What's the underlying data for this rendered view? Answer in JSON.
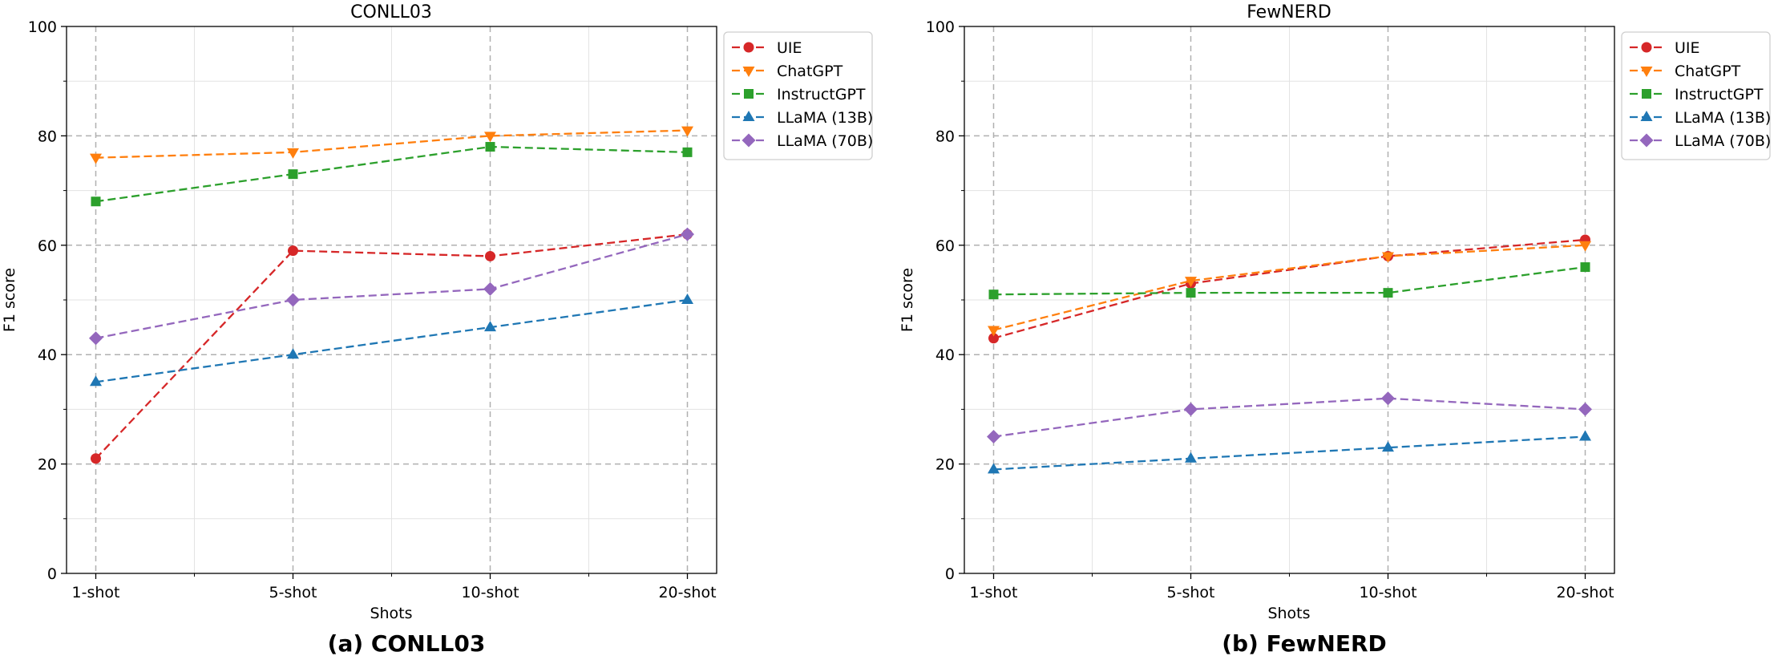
{
  "chart_data": [
    {
      "type": "line",
      "title": "CONLL03",
      "caption": "(a) CONLL03",
      "xlabel": "Shots",
      "ylabel": "F1 score",
      "categories": [
        "1-shot",
        "5-shot",
        "10-shot",
        "20-shot"
      ],
      "ylim": [
        0,
        100
      ],
      "yticks": [
        0,
        20,
        40,
        60,
        80,
        100
      ],
      "grid": true,
      "legend": "top-right (outside plot)",
      "series": [
        {
          "name": "UIE",
          "values": [
            21,
            59,
            58,
            62
          ],
          "color": "#d62728",
          "marker": "circle"
        },
        {
          "name": "ChatGPT",
          "values": [
            76,
            77,
            80,
            81
          ],
          "color": "#ff7f0e",
          "marker": "triangle-down"
        },
        {
          "name": "InstructGPT",
          "values": [
            68,
            73,
            78,
            77
          ],
          "color": "#2ca02c",
          "marker": "square"
        },
        {
          "name": "LLaMA (13B)",
          "values": [
            35,
            40,
            45,
            50
          ],
          "color": "#1f77b4",
          "marker": "triangle-up"
        },
        {
          "name": "LLaMA (70B)",
          "values": [
            43,
            50,
            52,
            62
          ],
          "color": "#9467bd",
          "marker": "diamond"
        }
      ]
    },
    {
      "type": "line",
      "title": "FewNERD",
      "caption": "(b) FewNERD",
      "xlabel": "Shots",
      "ylabel": "F1 score",
      "categories": [
        "1-shot",
        "5-shot",
        "10-shot",
        "20-shot"
      ],
      "ylim": [
        0,
        100
      ],
      "yticks": [
        0,
        20,
        40,
        60,
        80,
        100
      ],
      "grid": true,
      "legend": "top-right (outside plot)",
      "series": [
        {
          "name": "UIE",
          "values": [
            43,
            53,
            58,
            61
          ],
          "color": "#d62728",
          "marker": "circle"
        },
        {
          "name": "ChatGPT",
          "values": [
            44.5,
            53.5,
            58,
            60
          ],
          "color": "#ff7f0e",
          "marker": "triangle-down"
        },
        {
          "name": "InstructGPT",
          "values": [
            51,
            51.3,
            51.3,
            56
          ],
          "color": "#2ca02c",
          "marker": "square"
        },
        {
          "name": "LLaMA (13B)",
          "values": [
            19,
            21,
            23,
            25
          ],
          "color": "#1f77b4",
          "marker": "triangle-up"
        },
        {
          "name": "LLaMA (70B)",
          "values": [
            25,
            30,
            32,
            30
          ],
          "color": "#9467bd",
          "marker": "diamond"
        }
      ]
    }
  ]
}
